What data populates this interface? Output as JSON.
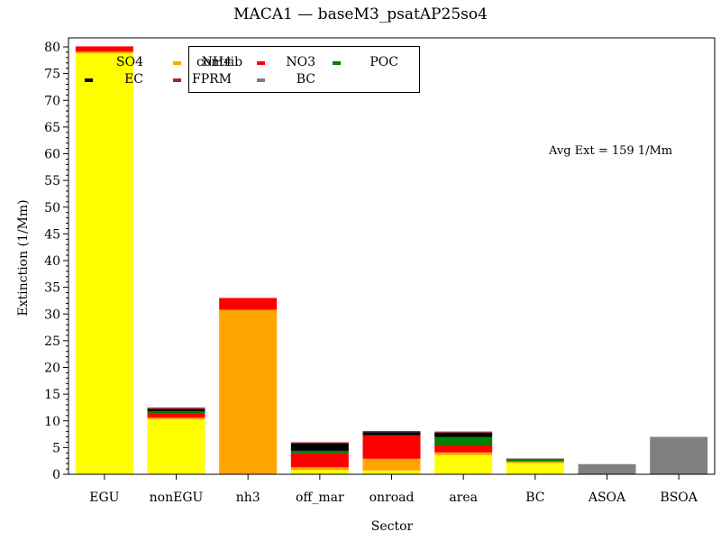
{
  "chart_data": {
    "type": "bar",
    "stacked": true,
    "title": "MACA1 — baseM3_psatAP25so4",
    "xlabel": "Sector",
    "ylabel": "Extinction (1/Mm)",
    "ylim": [
      0,
      82
    ],
    "yticks": [
      0,
      5,
      10,
      15,
      20,
      25,
      30,
      35,
      40,
      45,
      50,
      55,
      60,
      65,
      70,
      75,
      80
    ],
    "grid": false,
    "legend_position": "top-center",
    "legend_title": "contrib",
    "annotation": "Avg Ext =  159 1/Mm",
    "categories": [
      "EGU",
      "nonEGU",
      "nh3",
      "off_mar",
      "onroad",
      "area",
      "BC",
      "ASOA",
      "BSOA"
    ],
    "series": [
      {
        "name": "SO4",
        "color": "#ffff00",
        "values": [
          78.8,
          10.3,
          0.0,
          0.8,
          0.7,
          3.6,
          2.1,
          0.0,
          0.0
        ]
      },
      {
        "name": "NH4",
        "color": "#ffa500",
        "values": [
          0.3,
          0.3,
          30.8,
          0.5,
          2.2,
          0.5,
          0.3,
          0.0,
          0.0
        ]
      },
      {
        "name": "NO3",
        "color": "#ff0000",
        "values": [
          1.0,
          0.8,
          2.2,
          2.6,
          4.4,
          1.3,
          0.0,
          0.0,
          0.0
        ]
      },
      {
        "name": "POC",
        "color": "#008000",
        "values": [
          0.0,
          0.4,
          0.0,
          0.5,
          0.0,
          1.6,
          0.4,
          0.0,
          0.0
        ]
      },
      {
        "name": "EC",
        "color": "#000000",
        "values": [
          0.0,
          0.4,
          0.0,
          1.4,
          0.6,
          0.8,
          0.0,
          0.0,
          0.0
        ]
      },
      {
        "name": "FPRM",
        "color": "#a52a2a",
        "values": [
          0.0,
          0.3,
          0.0,
          0.2,
          0.2,
          0.2,
          0.1,
          0.0,
          0.0
        ]
      },
      {
        "name": "BC",
        "color": "#808080",
        "values": [
          0.0,
          0.0,
          0.0,
          0.0,
          0.0,
          0.0,
          0.1,
          1.9,
          7.0
        ]
      }
    ]
  }
}
